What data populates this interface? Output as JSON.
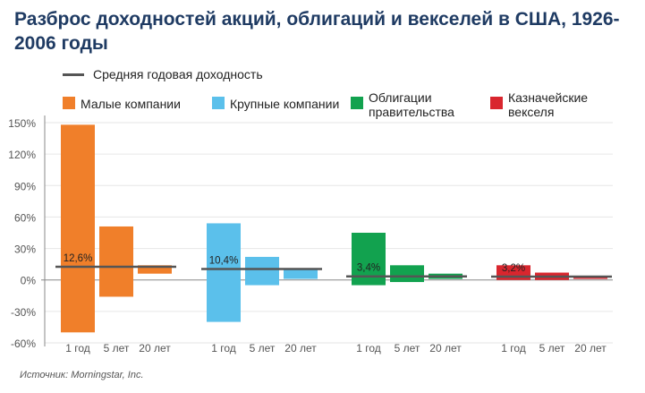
{
  "title": "Разброс доходностей акций, облигаций и векселей в США, 1926-2006 годы",
  "legend": {
    "mean_line": "Средняя годовая доходность",
    "items": [
      "Малые компании",
      "Крупные компании",
      "Облигации правительства",
      "Казначейские векселя"
    ]
  },
  "source": "Источник: Morningstar, Inc.",
  "chart_data": {
    "type": "bar",
    "subtype": "floating range bars with mean line",
    "ylim": [
      -60,
      150
    ],
    "yticks": [
      -60,
      -30,
      0,
      30,
      60,
      90,
      120,
      150
    ],
    "ytick_labels": [
      "-60%",
      "-30%",
      "0%",
      "30%",
      "60%",
      "90%",
      "120%",
      "150%"
    ],
    "grid": true,
    "categories": [
      "1 год",
      "5 лет",
      "20 лет"
    ],
    "series": [
      {
        "name": "Малые компании",
        "color": "#f07f2a",
        "mean": 12.6,
        "mean_label": "12,6%",
        "ranges": [
          [
            -50,
            148
          ],
          [
            -16,
            51
          ],
          [
            6,
            14
          ]
        ]
      },
      {
        "name": "Крупные компании",
        "color": "#5bc0eb",
        "mean": 10.4,
        "mean_label": "10,4%",
        "ranges": [
          [
            -40,
            54
          ],
          [
            -5,
            22
          ],
          [
            1,
            11
          ]
        ]
      },
      {
        "name": "Облигации правительства",
        "color": "#12a24f",
        "mean": 3.4,
        "mean_label": "3,4%",
        "ranges": [
          [
            -5,
            45
          ],
          [
            -2,
            14
          ],
          [
            1,
            6
          ]
        ]
      },
      {
        "name": "Казначейские векселя",
        "color": "#d9262e",
        "mean": 3.2,
        "mean_label": "3,2%",
        "ranges": [
          [
            0,
            14
          ],
          [
            0,
            7
          ],
          [
            1,
            3
          ]
        ]
      }
    ],
    "mean_line_color": "#555555"
  }
}
